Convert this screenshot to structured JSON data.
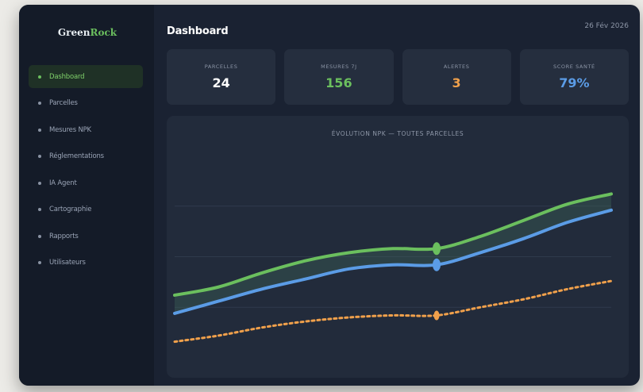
{
  "app": {
    "logo_main": "Green",
    "logo_accent": "Rock"
  },
  "sidebar": {
    "items": [
      {
        "label": "Dashboard",
        "active": true
      },
      {
        "label": "Parcelles"
      },
      {
        "label": "Mesures NPK"
      },
      {
        "label": "Réglementations"
      },
      {
        "label": "IA Agent"
      },
      {
        "label": "Cartographie"
      },
      {
        "label": "Rapports"
      },
      {
        "label": "Utilisateurs"
      }
    ]
  },
  "header": {
    "title": "Dashboard",
    "date": "26 Fév 2026"
  },
  "stats": [
    {
      "label": "PARCELLES",
      "value": "24",
      "color": "#ffffff"
    },
    {
      "label": "MESURES 7J",
      "value": "156",
      "color": "#6bbf5e"
    },
    {
      "label": "ALERTES",
      "value": "3",
      "color": "#f0a04b"
    },
    {
      "label": "SCORE SANTÉ",
      "value": "79%",
      "color": "#5b9ce6"
    }
  ],
  "chart_data": {
    "type": "line",
    "title": "ÉVOLUTION NPK — TOUTES PARCELLES",
    "ylim": [
      0,
      100
    ],
    "grid": true,
    "x": [
      0,
      1,
      2,
      3,
      4,
      5,
      6,
      7,
      8,
      9,
      10
    ],
    "series": [
      {
        "color": "#6bbf5e",
        "style": "solid",
        "values": [
          31,
          35,
          42,
          48,
          52,
          54,
          54,
          60,
          68,
          76,
          81
        ]
      },
      {
        "color": "#5b9ce6",
        "style": "solid",
        "values": [
          22,
          28,
          34,
          39,
          44,
          46,
          46,
          52,
          59,
          67,
          73
        ]
      },
      {
        "color": "#f0a04b",
        "style": "dotted",
        "values": [
          8,
          11,
          15,
          18,
          20,
          21,
          21,
          25,
          29,
          34,
          38
        ]
      }
    ],
    "highlight_index": 6
  }
}
